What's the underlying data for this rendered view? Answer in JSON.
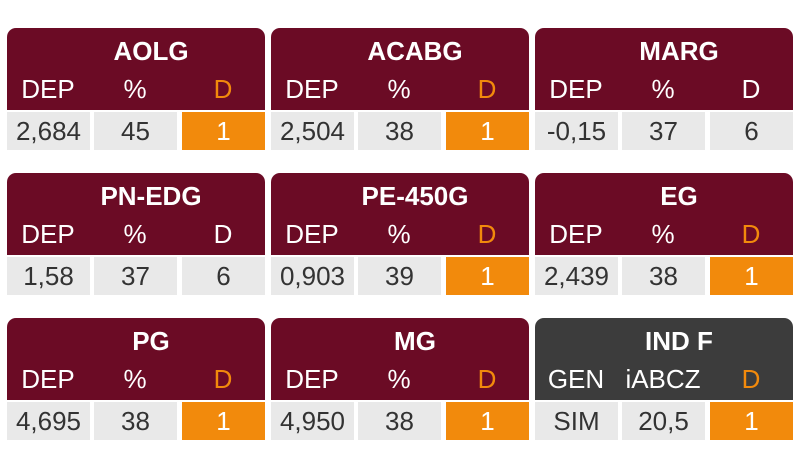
{
  "cards": [
    {
      "title": "AOLG",
      "headers": [
        "DEP",
        "%",
        "D"
      ],
      "values": [
        "2,684",
        "45",
        "1"
      ],
      "highlight": true,
      "header_color": "#6b0b25"
    },
    {
      "title": "ACABG",
      "headers": [
        "DEP",
        "%",
        "D"
      ],
      "values": [
        "2,504",
        "38",
        "1"
      ],
      "highlight": true,
      "header_color": "#6b0b25"
    },
    {
      "title": "MARG",
      "headers": [
        "DEP",
        "%",
        "D"
      ],
      "values": [
        "-0,15",
        "37",
        "6"
      ],
      "highlight": false,
      "header_color": "#6b0b25"
    },
    {
      "title": "PN-EDG",
      "headers": [
        "DEP",
        "%",
        "D"
      ],
      "values": [
        "1,58",
        "37",
        "6"
      ],
      "highlight": false,
      "header_color": "#6b0b25"
    },
    {
      "title": "PE-450G",
      "headers": [
        "DEP",
        "%",
        "D"
      ],
      "values": [
        "0,903",
        "39",
        "1"
      ],
      "highlight": true,
      "header_color": "#6b0b25"
    },
    {
      "title": "EG",
      "headers": [
        "DEP",
        "%",
        "D"
      ],
      "values": [
        "2,439",
        "38",
        "1"
      ],
      "highlight": true,
      "header_color": "#6b0b25"
    },
    {
      "title": "PG",
      "headers": [
        "DEP",
        "%",
        "D"
      ],
      "values": [
        "4,695",
        "38",
        "1"
      ],
      "highlight": true,
      "header_color": "#6b0b25"
    },
    {
      "title": "MG",
      "headers": [
        "DEP",
        "%",
        "D"
      ],
      "values": [
        "4,950",
        "38",
        "1"
      ],
      "highlight": true,
      "header_color": "#6b0b25"
    },
    {
      "title": "IND F",
      "headers": [
        "GEN",
        "iABCZ",
        "D"
      ],
      "values": [
        "SIM",
        "20,5",
        "1"
      ],
      "highlight": true,
      "header_color": "#3c3c3c"
    }
  ]
}
